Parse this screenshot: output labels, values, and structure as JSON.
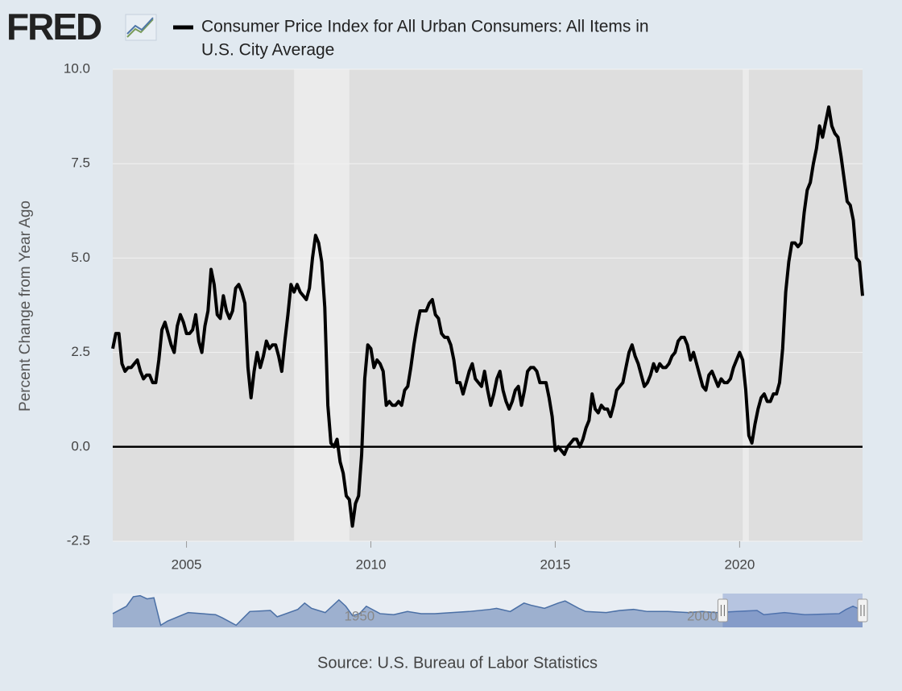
{
  "chart_data": {
    "type": "line",
    "logo": "FRED",
    "title": "Consumer Price Index for All Urban Consumers: All Items in U.S. City Average",
    "title_lines": [
      "Consumer Price Index for All Urban Consumers: All Items in",
      "U.S. City Average"
    ],
    "y_label": "Percent Change from Year Ago",
    "source": "Source: U.S. Bureau of Labor Statistics",
    "ylim": [
      -2.5,
      10
    ],
    "yticks": [
      {
        "value": -2.5,
        "label": "-2.5"
      },
      {
        "value": 0,
        "label": "0.0"
      },
      {
        "value": 2.5,
        "label": "2.5"
      },
      {
        "value": 5,
        "label": "5.0"
      },
      {
        "value": 7.5,
        "label": "7.5"
      },
      {
        "value": 10,
        "label": "10.0"
      }
    ],
    "xlim": [
      "2003-01",
      "2023-05"
    ],
    "xticks": [
      "2005",
      "2010",
      "2015",
      "2020"
    ],
    "grid": true,
    "recessions": [
      [
        "2007-12",
        "2009-06"
      ],
      [
        "2020-02",
        "2020-04"
      ]
    ],
    "series": [
      {
        "name": "Consumer Price Index for All Urban Consumers: All Items in U.S. City Average",
        "color": "#000000",
        "x": [
          "2003-01",
          "2003-02",
          "2003-03",
          "2003-04",
          "2003-05",
          "2003-06",
          "2003-07",
          "2003-08",
          "2003-09",
          "2003-10",
          "2003-11",
          "2003-12",
          "2004-01",
          "2004-02",
          "2004-03",
          "2004-04",
          "2004-05",
          "2004-06",
          "2004-07",
          "2004-08",
          "2004-09",
          "2004-10",
          "2004-11",
          "2004-12",
          "2005-01",
          "2005-02",
          "2005-03",
          "2005-04",
          "2005-05",
          "2005-06",
          "2005-07",
          "2005-08",
          "2005-09",
          "2005-10",
          "2005-11",
          "2005-12",
          "2006-01",
          "2006-02",
          "2006-03",
          "2006-04",
          "2006-05",
          "2006-06",
          "2006-07",
          "2006-08",
          "2006-09",
          "2006-10",
          "2006-11",
          "2006-12",
          "2007-01",
          "2007-02",
          "2007-03",
          "2007-04",
          "2007-05",
          "2007-06",
          "2007-07",
          "2007-08",
          "2007-09",
          "2007-10",
          "2007-11",
          "2007-12",
          "2008-01",
          "2008-02",
          "2008-03",
          "2008-04",
          "2008-05",
          "2008-06",
          "2008-07",
          "2008-08",
          "2008-09",
          "2008-10",
          "2008-11",
          "2008-12",
          "2009-01",
          "2009-02",
          "2009-03",
          "2009-04",
          "2009-05",
          "2009-06",
          "2009-07",
          "2009-08",
          "2009-09",
          "2009-10",
          "2009-11",
          "2009-12",
          "2010-01",
          "2010-02",
          "2010-03",
          "2010-04",
          "2010-05",
          "2010-06",
          "2010-07",
          "2010-08",
          "2010-09",
          "2010-10",
          "2010-11",
          "2010-12",
          "2011-01",
          "2011-02",
          "2011-03",
          "2011-04",
          "2011-05",
          "2011-06",
          "2011-07",
          "2011-08",
          "2011-09",
          "2011-10",
          "2011-11",
          "2011-12",
          "2012-01",
          "2012-02",
          "2012-03",
          "2012-04",
          "2012-05",
          "2012-06",
          "2012-07",
          "2012-08",
          "2012-09",
          "2012-10",
          "2012-11",
          "2012-12",
          "2013-01",
          "2013-02",
          "2013-03",
          "2013-04",
          "2013-05",
          "2013-06",
          "2013-07",
          "2013-08",
          "2013-09",
          "2013-10",
          "2013-11",
          "2013-12",
          "2014-01",
          "2014-02",
          "2014-03",
          "2014-04",
          "2014-05",
          "2014-06",
          "2014-07",
          "2014-08",
          "2014-09",
          "2014-10",
          "2014-11",
          "2014-12",
          "2015-01",
          "2015-02",
          "2015-03",
          "2015-04",
          "2015-05",
          "2015-06",
          "2015-07",
          "2015-08",
          "2015-09",
          "2015-10",
          "2015-11",
          "2015-12",
          "2016-01",
          "2016-02",
          "2016-03",
          "2016-04",
          "2016-05",
          "2016-06",
          "2016-07",
          "2016-08",
          "2016-09",
          "2016-10",
          "2016-11",
          "2016-12",
          "2017-01",
          "2017-02",
          "2017-03",
          "2017-04",
          "2017-05",
          "2017-06",
          "2017-07",
          "2017-08",
          "2017-09",
          "2017-10",
          "2017-11",
          "2017-12",
          "2018-01",
          "2018-02",
          "2018-03",
          "2018-04",
          "2018-05",
          "2018-06",
          "2018-07",
          "2018-08",
          "2018-09",
          "2018-10",
          "2018-11",
          "2018-12",
          "2019-01",
          "2019-02",
          "2019-03",
          "2019-04",
          "2019-05",
          "2019-06",
          "2019-07",
          "2019-08",
          "2019-09",
          "2019-10",
          "2019-11",
          "2019-12",
          "2020-01",
          "2020-02",
          "2020-03",
          "2020-04",
          "2020-05",
          "2020-06",
          "2020-07",
          "2020-08",
          "2020-09",
          "2020-10",
          "2020-11",
          "2020-12",
          "2021-01",
          "2021-02",
          "2021-03",
          "2021-04",
          "2021-05",
          "2021-06",
          "2021-07",
          "2021-08",
          "2021-09",
          "2021-10",
          "2021-11",
          "2021-12",
          "2022-01",
          "2022-02",
          "2022-03",
          "2022-04",
          "2022-05",
          "2022-06",
          "2022-07",
          "2022-08",
          "2022-09",
          "2022-10",
          "2022-11",
          "2022-12",
          "2023-01",
          "2023-02",
          "2023-03",
          "2023-04",
          "2023-05"
        ],
        "values": [
          2.6,
          3.0,
          3.0,
          2.2,
          2.0,
          2.1,
          2.1,
          2.2,
          2.3,
          2.0,
          1.8,
          1.9,
          1.9,
          1.7,
          1.7,
          2.3,
          3.1,
          3.3,
          3.0,
          2.7,
          2.5,
          3.2,
          3.5,
          3.3,
          3.0,
          3.0,
          3.1,
          3.5,
          2.8,
          2.5,
          3.2,
          3.6,
          4.7,
          4.3,
          3.5,
          3.4,
          4.0,
          3.6,
          3.4,
          3.6,
          4.2,
          4.3,
          4.1,
          3.8,
          2.1,
          1.3,
          2.0,
          2.5,
          2.1,
          2.4,
          2.8,
          2.6,
          2.7,
          2.7,
          2.4,
          2.0,
          2.8,
          3.5,
          4.3,
          4.1,
          4.3,
          4.1,
          4.0,
          3.9,
          4.2,
          5.0,
          5.6,
          5.4,
          4.9,
          3.7,
          1.1,
          0.1,
          0.0,
          0.2,
          -0.4,
          -0.7,
          -1.3,
          -1.4,
          -2.1,
          -1.5,
          -1.3,
          -0.2,
          1.8,
          2.7,
          2.6,
          2.1,
          2.3,
          2.2,
          2.0,
          1.1,
          1.2,
          1.1,
          1.1,
          1.2,
          1.1,
          1.5,
          1.6,
          2.1,
          2.7,
          3.2,
          3.6,
          3.6,
          3.6,
          3.8,
          3.9,
          3.5,
          3.4,
          3.0,
          2.9,
          2.9,
          2.7,
          2.3,
          1.7,
          1.7,
          1.4,
          1.7,
          2.0,
          2.2,
          1.8,
          1.7,
          1.6,
          2.0,
          1.5,
          1.1,
          1.4,
          1.8,
          2.0,
          1.5,
          1.2,
          1.0,
          1.2,
          1.5,
          1.6,
          1.1,
          1.5,
          2.0,
          2.1,
          2.1,
          2.0,
          1.7,
          1.7,
          1.7,
          1.3,
          0.8,
          -0.1,
          0.0,
          -0.1,
          -0.2,
          0.0,
          0.1,
          0.2,
          0.2,
          0.0,
          0.2,
          0.5,
          0.7,
          1.4,
          1.0,
          0.9,
          1.1,
          1.0,
          1.0,
          0.8,
          1.1,
          1.5,
          1.6,
          1.7,
          2.1,
          2.5,
          2.7,
          2.4,
          2.2,
          1.9,
          1.6,
          1.7,
          1.9,
          2.2,
          2.0,
          2.2,
          2.1,
          2.1,
          2.2,
          2.4,
          2.5,
          2.8,
          2.9,
          2.9,
          2.7,
          2.3,
          2.5,
          2.2,
          1.9,
          1.6,
          1.5,
          1.9,
          2.0,
          1.8,
          1.6,
          1.8,
          1.7,
          1.7,
          1.8,
          2.1,
          2.3,
          2.5,
          2.3,
          1.5,
          0.3,
          0.1,
          0.6,
          1.0,
          1.3,
          1.4,
          1.2,
          1.2,
          1.4,
          1.4,
          1.7,
          2.6,
          4.1,
          4.9,
          5.4,
          5.4,
          5.3,
          5.4,
          6.2,
          6.8,
          7.0,
          7.5,
          7.9,
          8.5,
          8.2,
          8.6,
          9.0,
          8.5,
          8.3,
          8.2,
          7.7,
          7.1,
          6.5,
          6.4,
          6.0,
          5.0,
          4.9,
          4.0
        ]
      }
    ],
    "navigator": {
      "labels": [
        {
          "value": 1950,
          "label": "1950"
        },
        {
          "value": 2000,
          "label": "2000"
        }
      ],
      "xlim": [
        1914,
        2023.4
      ],
      "ylim": [
        -12,
        20
      ],
      "selection": [
        2003,
        2023.4
      ],
      "x": [
        1914,
        1916,
        1917,
        1918,
        1919,
        1920,
        1921,
        1922,
        1925,
        1929,
        1930,
        1932,
        1934,
        1937,
        1938,
        1941,
        1942,
        1943,
        1945,
        1946,
        1947,
        1948,
        1949,
        1950,
        1951,
        1953,
        1955,
        1957,
        1959,
        1961,
        1966,
        1969,
        1970,
        1972,
        1974,
        1975,
        1977,
        1979,
        1980,
        1982,
        1983,
        1986,
        1988,
        1990,
        1992,
        1995,
        1998,
        2000,
        2002,
        2005,
        2008,
        2009,
        2012,
        2015,
        2020,
        2021,
        2022,
        2023.4
      ],
      "values": [
        1,
        8,
        17,
        18,
        15,
        16,
        -10,
        -6,
        2,
        0,
        -3,
        -10,
        3,
        4,
        -2,
        5,
        11,
        6,
        2,
        8,
        14,
        8,
        -1,
        1,
        8,
        1,
        0,
        3,
        1,
        1,
        3,
        5,
        6,
        3,
        11,
        9,
        6,
        11,
        13,
        6,
        3,
        2,
        4,
        5,
        3,
        3,
        2,
        3,
        2,
        3,
        4,
        0,
        2,
        0,
        1,
        5,
        8,
        4
      ]
    }
  }
}
